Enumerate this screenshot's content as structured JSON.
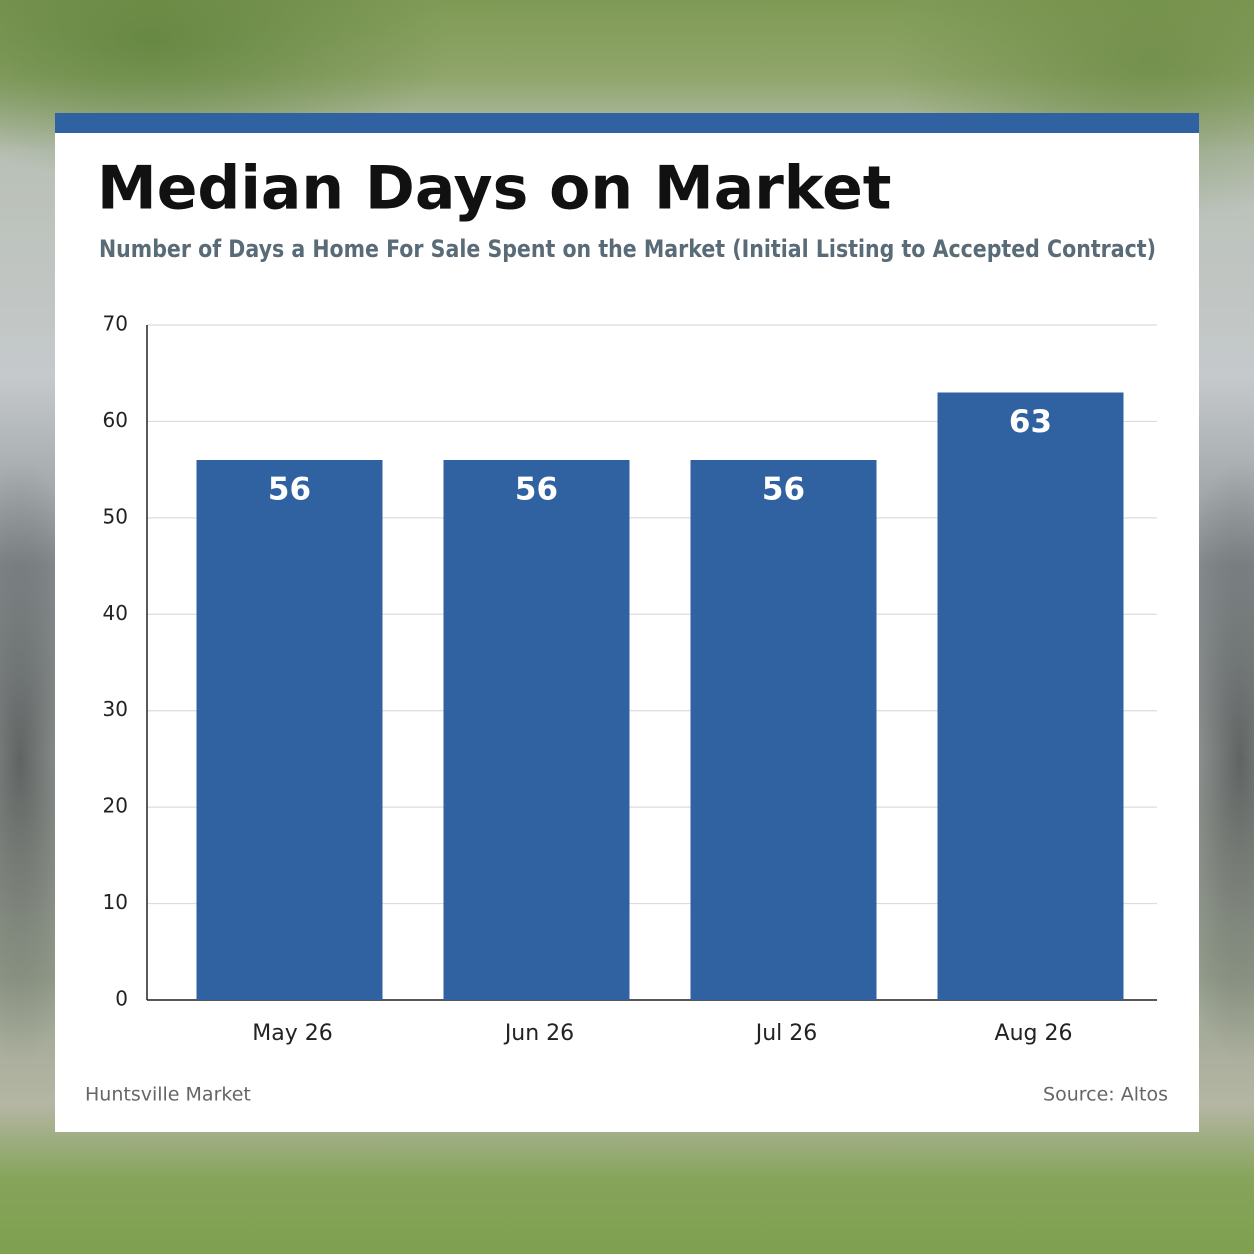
{
  "chart_data": {
    "type": "bar",
    "title": "Median Days on Market",
    "subtitle": "Number of Days a Home For Sale Spent on the Market (Initial Listing to Accepted Contract)",
    "categories": [
      "May 26",
      "Jun 26",
      "Jul 26",
      "Aug 26"
    ],
    "values": [
      56,
      56,
      56,
      63
    ],
    "color": "#3061a0",
    "ylim": [
      0,
      70
    ],
    "yticks": [
      0,
      10,
      20,
      30,
      40,
      50,
      60,
      70
    ],
    "grid": true,
    "note": "Huntsville Market",
    "source": "Source: Altos"
  }
}
